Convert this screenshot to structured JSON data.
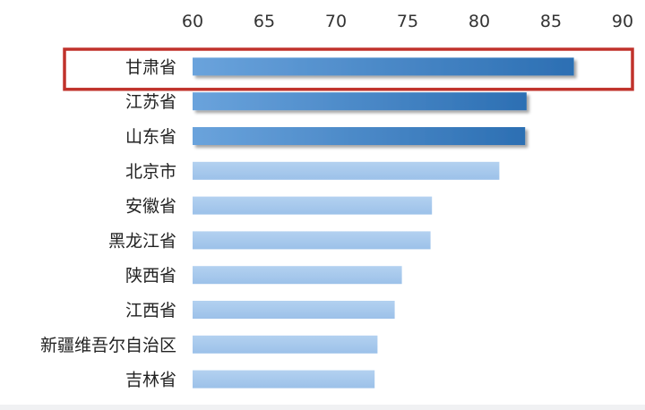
{
  "chart_data": {
    "type": "bar",
    "orientation": "horizontal",
    "categories": [
      "甘肃省",
      "江苏省",
      "山东省",
      "北京市",
      "安徽省",
      "黑龙江省",
      "陕西省",
      "江西省",
      "新疆维吾尔自治区",
      "吉林省"
    ],
    "values": [
      86.6,
      83.3,
      83.2,
      81.4,
      76.7,
      76.6,
      74.6,
      74.1,
      72.9,
      72.7
    ],
    "xlim": [
      60,
      90
    ],
    "x_ticks": [
      "60",
      "65",
      "70",
      "75",
      "80",
      "85",
      "90"
    ],
    "x_axis_position": "top",
    "grid": false,
    "highlighted_categories": [
      "甘肃省"
    ],
    "colors": {
      "top_bar_dark": "#2c6fb3",
      "top_bar_light": "#6aa3dc",
      "other_bar": "#a6c8ec",
      "highlight_border": "#c0322b",
      "tick_text": "#333333"
    },
    "dark_bar_count": 3
  }
}
